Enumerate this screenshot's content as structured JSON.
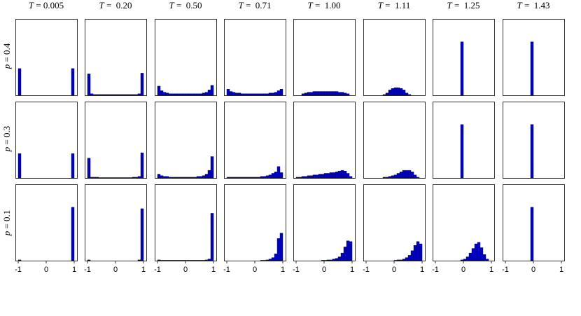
{
  "figure": {
    "columns": [
      {
        "var": "T",
        "eq": " = ",
        "value": "0.005"
      },
      {
        "var": "T",
        "eq": " =  ",
        "value": "0.20"
      },
      {
        "var": "T",
        "eq": " =  ",
        "value": "0.50"
      },
      {
        "var": "T",
        "eq": " =  ",
        "value": "0.71"
      },
      {
        "var": "T",
        "eq": " =  ",
        "value": "1.00"
      },
      {
        "var": "T",
        "eq": " =  ",
        "value": "1.11"
      },
      {
        "var": "T",
        "eq": " =  ",
        "value": "1.25"
      },
      {
        "var": "T",
        "eq": " =  ",
        "value": "1.43"
      }
    ],
    "rows": [
      {
        "var": "p",
        "eq": " = ",
        "value": "0.4"
      },
      {
        "var": "p",
        "eq": " = ",
        "value": "0.3"
      },
      {
        "var": "p",
        "eq": " = ",
        "value": "0.1"
      }
    ],
    "bar_color": "#0000cc",
    "bar_edge_color": "#000033"
  },
  "chart_data": {
    "type": "bar",
    "description_note": "",
    "xlim": [
      -1.1,
      1.1
    ],
    "xticks": [
      -1,
      0,
      1
    ],
    "xtick_labels": [
      "-1",
      "0",
      "1"
    ],
    "bins_x": [
      -0.95,
      -0.85,
      -0.75,
      -0.65,
      -0.55,
      -0.45,
      -0.35,
      -0.25,
      -0.15,
      -0.05,
      0.05,
      0.15,
      0.25,
      0.35,
      0.45,
      0.55,
      0.65,
      0.75,
      0.85,
      0.95
    ],
    "bin_width": 0.1,
    "ylim": [
      0,
      1
    ],
    "panels": [
      [
        {
          "values": [
            0.35,
            0,
            0,
            0,
            0,
            0,
            0,
            0,
            0,
            0,
            0,
            0,
            0,
            0,
            0,
            0,
            0,
            0,
            0,
            0.35
          ]
        },
        {
          "values": [
            0.28,
            0.02,
            0.01,
            0.01,
            0.01,
            0.01,
            0.01,
            0.01,
            0.01,
            0.01,
            0.01,
            0.01,
            0.01,
            0.01,
            0.01,
            0.01,
            0.01,
            0.01,
            0.02,
            0.29
          ]
        },
        {
          "values": [
            0.12,
            0.06,
            0.04,
            0.03,
            0.02,
            0.02,
            0.02,
            0.02,
            0.02,
            0.02,
            0.02,
            0.02,
            0.02,
            0.02,
            0.02,
            0.02,
            0.03,
            0.04,
            0.07,
            0.13
          ]
        },
        {
          "values": [
            0.08,
            0.05,
            0.04,
            0.03,
            0.03,
            0.02,
            0.02,
            0.02,
            0.02,
            0.02,
            0.02,
            0.02,
            0.02,
            0.02,
            0.02,
            0.03,
            0.03,
            0.04,
            0.06,
            0.08
          ]
        },
        {
          "values": [
            0,
            0,
            0.02,
            0.03,
            0.04,
            0.04,
            0.05,
            0.05,
            0.05,
            0.05,
            0.05,
            0.05,
            0.05,
            0.05,
            0.05,
            0.04,
            0.04,
            0.03,
            0.02,
            0
          ]
        },
        {
          "values": [
            0,
            0,
            0,
            0,
            0,
            0,
            0.01,
            0.03,
            0.07,
            0.09,
            0.1,
            0.1,
            0.09,
            0.07,
            0.03,
            0.01,
            0,
            0,
            0,
            0
          ]
        },
        {
          "values": [
            0,
            0,
            0,
            0,
            0,
            0,
            0,
            0,
            0,
            0.7,
            0,
            0,
            0,
            0,
            0,
            0,
            0,
            0,
            0,
            0
          ]
        },
        {
          "values": [
            0,
            0,
            0,
            0,
            0,
            0,
            0,
            0,
            0,
            0.7,
            0,
            0,
            0,
            0,
            0,
            0,
            0,
            0,
            0,
            0
          ]
        }
      ],
      [
        {
          "values": [
            0.32,
            0,
            0,
            0,
            0,
            0,
            0,
            0,
            0,
            0,
            0,
            0,
            0,
            0,
            0,
            0,
            0,
            0,
            0,
            0.32
          ]
        },
        {
          "values": [
            0.26,
            0.01,
            0.01,
            0.01,
            0.005,
            0.005,
            0.005,
            0.005,
            0.005,
            0.005,
            0.005,
            0.005,
            0.005,
            0.005,
            0.005,
            0.005,
            0.01,
            0.01,
            0.02,
            0.33
          ]
        },
        {
          "values": [
            0.05,
            0.03,
            0.02,
            0.02,
            0.01,
            0.01,
            0.01,
            0.01,
            0.01,
            0.01,
            0.01,
            0.01,
            0.01,
            0.01,
            0.02,
            0.02,
            0.03,
            0.05,
            0.1,
            0.28
          ]
        },
        {
          "values": [
            0.01,
            0.01,
            0.01,
            0.01,
            0.01,
            0.01,
            0.01,
            0.01,
            0.01,
            0.01,
            0.01,
            0.01,
            0.02,
            0.02,
            0.03,
            0.04,
            0.06,
            0.08,
            0.15,
            0.07
          ]
        },
        {
          "values": [
            0.01,
            0.01,
            0.02,
            0.02,
            0.03,
            0.03,
            0.04,
            0.04,
            0.05,
            0.05,
            0.06,
            0.06,
            0.07,
            0.07,
            0.08,
            0.09,
            0.1,
            0.09,
            0.06,
            0.02
          ]
        },
        {
          "values": [
            0,
            0,
            0,
            0,
            0,
            0,
            0.01,
            0.01,
            0.02,
            0.03,
            0.04,
            0.06,
            0.08,
            0.1,
            0.1,
            0.1,
            0.08,
            0.04,
            0.01,
            0
          ]
        },
        {
          "values": [
            0,
            0,
            0,
            0,
            0,
            0,
            0,
            0,
            0,
            0.7,
            0,
            0,
            0,
            0,
            0,
            0,
            0,
            0,
            0,
            0
          ]
        },
        {
          "values": [
            0,
            0,
            0,
            0,
            0,
            0,
            0,
            0,
            0,
            0.7,
            0,
            0,
            0,
            0,
            0,
            0,
            0,
            0,
            0,
            0
          ]
        }
      ],
      [
        {
          "values": [
            0.01,
            0,
            0,
            0,
            0,
            0,
            0,
            0,
            0,
            0,
            0,
            0,
            0,
            0,
            0,
            0,
            0,
            0,
            0,
            0.7
          ]
        },
        {
          "values": [
            0.01,
            0,
            0,
            0,
            0,
            0,
            0,
            0,
            0,
            0,
            0,
            0,
            0,
            0,
            0,
            0,
            0,
            0,
            0.01,
            0.68
          ]
        },
        {
          "values": [
            0.01,
            0.005,
            0.005,
            0.005,
            0.005,
            0.005,
            0.005,
            0.005,
            0.005,
            0.005,
            0.005,
            0.005,
            0.005,
            0.005,
            0.005,
            0.005,
            0.005,
            0.01,
            0.02,
            0.62
          ]
        },
        {
          "values": [
            0,
            0,
            0,
            0,
            0,
            0,
            0,
            0,
            0,
            0,
            0,
            0,
            0.005,
            0.005,
            0.01,
            0.02,
            0.04,
            0.09,
            0.29,
            0.36
          ]
        },
        {
          "values": [
            0,
            0,
            0,
            0,
            0,
            0,
            0,
            0,
            0,
            0.005,
            0.005,
            0.01,
            0.01,
            0.02,
            0.03,
            0.05,
            0.1,
            0.18,
            0.26,
            0.25
          ]
        },
        {
          "values": [
            0,
            0,
            0,
            0,
            0,
            0,
            0,
            0,
            0,
            0,
            0.005,
            0.01,
            0.01,
            0.02,
            0.04,
            0.07,
            0.13,
            0.2,
            0.25,
            0.22
          ]
        },
        {
          "values": [
            0,
            0,
            0,
            0,
            0,
            0,
            0,
            0,
            0,
            0.01,
            0.02,
            0.05,
            0.1,
            0.16,
            0.22,
            0.24,
            0.17,
            0.08,
            0.02,
            0
          ]
        },
        {
          "values": [
            0,
            0,
            0,
            0,
            0,
            0,
            0,
            0,
            0,
            0.7,
            0,
            0,
            0,
            0,
            0,
            0,
            0,
            0,
            0,
            0
          ]
        }
      ]
    ]
  }
}
